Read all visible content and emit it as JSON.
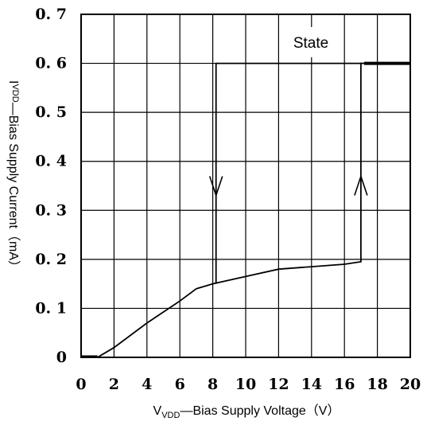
{
  "chart_data": {
    "type": "line",
    "xlim": [
      0,
      20
    ],
    "ylim": [
      0,
      0.7
    ],
    "x_ticks": [
      0,
      2,
      4,
      6,
      8,
      10,
      12,
      14,
      16,
      18,
      20
    ],
    "y_ticks": [
      0,
      0.1,
      0.2,
      0.3,
      0.4,
      0.5,
      0.6,
      0.7
    ],
    "x_tick_labels": [
      "0",
      "2",
      "4",
      "6",
      "8",
      "10",
      "12",
      "14",
      "16",
      "18",
      "20"
    ],
    "y_tick_labels": [
      "0",
      "0. 1",
      "0. 2",
      "0. 3",
      "0. 4",
      "0. 5",
      "0. 6",
      "0. 7"
    ],
    "grid": true,
    "xlabel": {
      "main": "V",
      "sub": "VDD",
      "rest": "—Bias Supply Voltage（V）"
    },
    "ylabel": {
      "main": "I",
      "sub": "VDD",
      "rest": "—Bias Supply Current（mA）"
    },
    "annotation": "State",
    "series": [
      {
        "values": [
          [
            0,
            0
          ],
          [
            1,
            0
          ],
          [
            2,
            0.02
          ],
          [
            4,
            0.07
          ],
          [
            6,
            0.115
          ],
          [
            7,
            0.14
          ],
          [
            8,
            0.15
          ],
          [
            10,
            0.165
          ],
          [
            12,
            0.18
          ],
          [
            14,
            0.185
          ],
          [
            16,
            0.19
          ],
          [
            17,
            0.195
          ],
          [
            17,
            0.6
          ],
          [
            20,
            0.6
          ]
        ]
      },
      {
        "values": [
          [
            20,
            0.6
          ],
          [
            8.2,
            0.6
          ],
          [
            8.2,
            0.15
          ]
        ]
      }
    ],
    "arrows": [
      {
        "x": 8.2,
        "y": 0.35,
        "direction": "down"
      },
      {
        "x": 17,
        "y": 0.35,
        "direction": "up"
      }
    ]
  }
}
